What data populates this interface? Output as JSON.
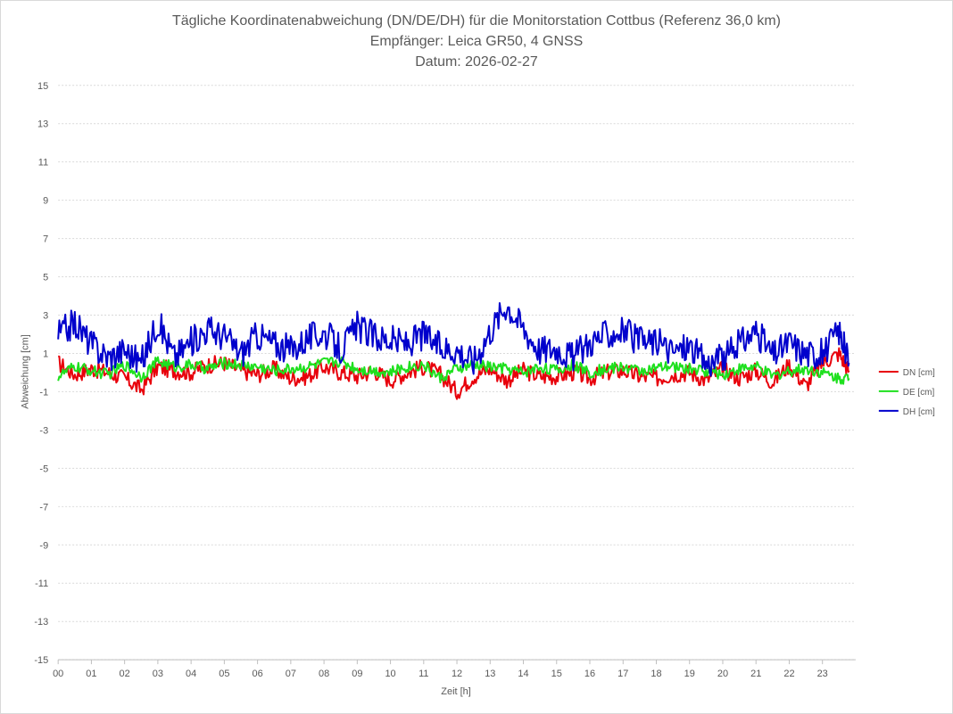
{
  "chart_data": {
    "type": "line",
    "title_lines": [
      "Tägliche Koordinatenabweichung (DN/DE/DH) für die Monitorstation Cottbus (Referenz 36,0 km)",
      "Empfänger: Leica GR50, 4 GNSS",
      "Datum: 2026-02-27"
    ],
    "xlabel": "Zeit [h]",
    "ylabel": "Abweichung [cm]",
    "xlim": [
      0,
      24
    ],
    "ylim": [
      -15,
      15
    ],
    "yticks": [
      15,
      13,
      11,
      9,
      7,
      5,
      3,
      1,
      -1,
      -3,
      -5,
      -7,
      -9,
      -11,
      -13,
      -15
    ],
    "xticks": [
      "00",
      "01",
      "02",
      "03",
      "04",
      "05",
      "06",
      "07",
      "08",
      "09",
      "10",
      "11",
      "12",
      "13",
      "14",
      "15",
      "16",
      "17",
      "18",
      "19",
      "20",
      "21",
      "22",
      "23"
    ],
    "grid": true,
    "legend_position": "right",
    "series": [
      {
        "name": "DN [cm]",
        "color": "#e8000b",
        "x": [
          0,
          0.5,
          1,
          1.5,
          2,
          2.5,
          3,
          3.5,
          4,
          4.5,
          5,
          5.5,
          6,
          6.5,
          7,
          7.5,
          8,
          8.5,
          9,
          9.5,
          10,
          10.5,
          11,
          11.5,
          12,
          12.5,
          13,
          13.5,
          14,
          14.5,
          15,
          15.5,
          16,
          16.5,
          17,
          17.5,
          18,
          18.5,
          19,
          19.5,
          20,
          20.5,
          21,
          21.5,
          22,
          22.5,
          23,
          23.5,
          23.8
        ],
        "values": [
          0.5,
          -0.1,
          0.2,
          0.0,
          -0.3,
          -0.9,
          0.3,
          0.1,
          0.0,
          0.4,
          0.5,
          0.1,
          -0.1,
          0.2,
          -0.3,
          -0.2,
          0.3,
          0.0,
          -0.2,
          0.1,
          -0.4,
          0.0,
          0.3,
          -0.1,
          -1.0,
          -0.2,
          0.2,
          -0.4,
          0.1,
          -0.2,
          -0.2,
          0.0,
          -0.3,
          0.0,
          0.1,
          -0.2,
          -0.3,
          -0.1,
          0.0,
          -0.4,
          0.2,
          -0.3,
          0.1,
          -0.5,
          0.4,
          -0.7,
          0.5,
          1.0,
          0.1
        ]
      },
      {
        "name": "DE [cm]",
        "color": "#1ee01e",
        "x": [
          0,
          0.5,
          1,
          1.5,
          2,
          2.5,
          3,
          3.5,
          4,
          4.5,
          5,
          5.5,
          6,
          6.5,
          7,
          7.5,
          8,
          8.5,
          9,
          9.5,
          10,
          10.5,
          11,
          11.5,
          12,
          12.5,
          13,
          13.5,
          14,
          14.5,
          15,
          15.5,
          16,
          16.5,
          17,
          17.5,
          18,
          18.5,
          19,
          19.5,
          20,
          20.5,
          21,
          21.5,
          22,
          22.5,
          23,
          23.5,
          23.8
        ],
        "values": [
          -0.2,
          0.3,
          0.1,
          -0.1,
          0.4,
          -0.2,
          0.6,
          0.3,
          0.4,
          0.2,
          0.5,
          0.4,
          0.3,
          0.1,
          0.2,
          0.3,
          0.5,
          0.6,
          0.2,
          0.1,
          0.0,
          0.3,
          0.4,
          -0.3,
          0.2,
          0.4,
          0.3,
          0.2,
          0.0,
          0.3,
          0.1,
          0.4,
          0.0,
          0.2,
          0.3,
          0.1,
          0.2,
          0.3,
          0.2,
          0.1,
          -0.1,
          0.2,
          0.3,
          -0.2,
          0.1,
          0.2,
          0.0,
          -0.3,
          -0.3
        ]
      },
      {
        "name": "DH [cm]",
        "color": "#0000cc",
        "x": [
          0,
          0.5,
          1,
          1.5,
          2,
          2.5,
          3,
          3.5,
          4,
          4.5,
          5,
          5.5,
          6,
          6.5,
          7,
          7.5,
          8,
          8.5,
          9,
          9.5,
          10,
          10.5,
          11,
          11.5,
          12,
          12.5,
          13,
          13.5,
          14,
          14.5,
          15,
          15.5,
          16,
          16.5,
          17,
          17.5,
          18,
          18.5,
          19,
          19.5,
          20,
          20.5,
          21,
          21.5,
          22,
          22.5,
          23,
          23.5,
          23.8
        ],
        "values": [
          2.0,
          2.6,
          1.5,
          0.8,
          1.2,
          0.5,
          2.7,
          0.8,
          1.6,
          2.3,
          1.9,
          1.0,
          2.0,
          1.5,
          1.2,
          1.8,
          2.1,
          1.2,
          2.4,
          1.9,
          1.7,
          1.5,
          2.0,
          1.3,
          1.2,
          0.6,
          2.2,
          3.6,
          2.3,
          1.2,
          1.3,
          0.8,
          1.6,
          2.0,
          2.2,
          1.6,
          1.6,
          1.1,
          1.4,
          0.5,
          0.7,
          1.5,
          2.2,
          0.9,
          1.6,
          1.0,
          1.0,
          2.2,
          0.5
        ]
      }
    ]
  }
}
